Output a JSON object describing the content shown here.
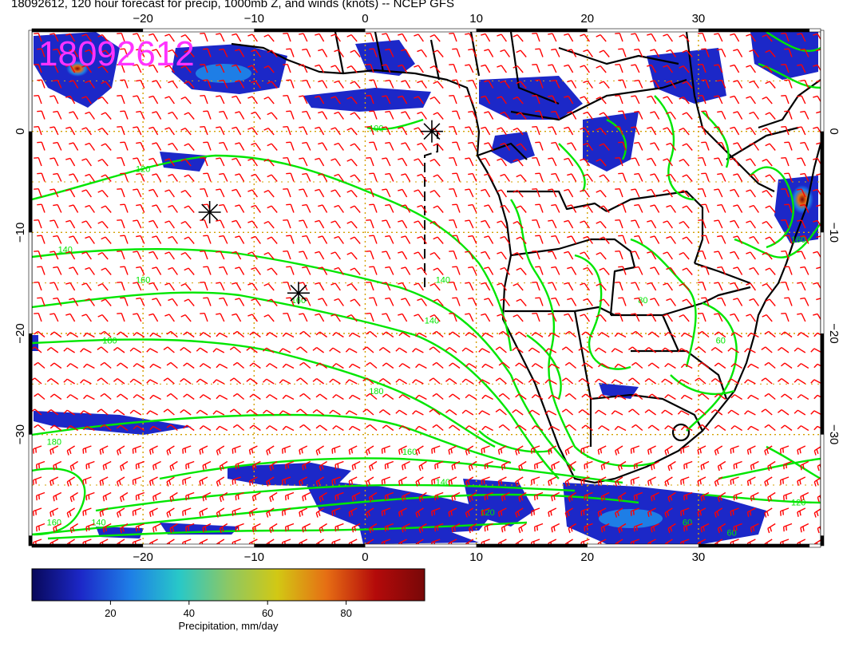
{
  "header": {
    "title": "18092612, 120 hour forecast for precip, 1000mb Z, and winds (knots) -- NCEP GFS",
    "stamp": "18092612",
    "stamp_color": "#ff33ff"
  },
  "map": {
    "lon_range": [
      -30,
      41
    ],
    "lat_range": [
      -41,
      10
    ],
    "lon_ticks": [
      {
        "value": -20,
        "label": "−20"
      },
      {
        "value": -10,
        "label": "−10"
      },
      {
        "value": 0,
        "label": "0"
      },
      {
        "value": 10,
        "label": "10"
      },
      {
        "value": 20,
        "label": "20"
      },
      {
        "value": 30,
        "label": "30"
      }
    ],
    "lat_ticks": [
      {
        "value": 0,
        "label": "0"
      },
      {
        "value": -10,
        "label": "−10"
      },
      {
        "value": -20,
        "label": "−20"
      },
      {
        "value": -30,
        "label": "−30"
      }
    ],
    "contour_labels": [
      {
        "text": "120",
        "lon": -20,
        "lat": -4
      },
      {
        "text": "140",
        "lon": -27,
        "lat": -12
      },
      {
        "text": "160",
        "lon": -20,
        "lat": -15
      },
      {
        "text": "160",
        "lon": -6,
        "lat": -17
      },
      {
        "text": "140",
        "lon": 7,
        "lat": -15
      },
      {
        "text": "140",
        "lon": 6,
        "lat": -19
      },
      {
        "text": "180",
        "lon": -23,
        "lat": -21
      },
      {
        "text": "180",
        "lon": 1,
        "lat": -26
      },
      {
        "text": "180",
        "lon": -28,
        "lat": -31
      },
      {
        "text": "160",
        "lon": 4,
        "lat": -32
      },
      {
        "text": "140",
        "lon": 7,
        "lat": -35
      },
      {
        "text": "120",
        "lon": 11,
        "lat": -38
      },
      {
        "text": "160",
        "lon": -28,
        "lat": -39
      },
      {
        "text": "140",
        "lon": -24,
        "lat": -39
      },
      {
        "text": "100",
        "lon": 1,
        "lat": 0
      },
      {
        "text": "120",
        "lon": 39,
        "lat": -37
      },
      {
        "text": "60",
        "lon": 29,
        "lat": -39
      },
      {
        "text": "60",
        "lon": 33,
        "lat": -40
      },
      {
        "text": "80",
        "lon": 25,
        "lat": -17
      },
      {
        "text": "60",
        "lon": 32,
        "lat": -21
      },
      {
        "text": "160",
        "lon": 39,
        "lat": -11
      }
    ],
    "markers": [
      {
        "lon": -14,
        "lat": -8
      },
      {
        "lon": -6,
        "lat": -16
      },
      {
        "lon": 6,
        "lat": 0
      }
    ],
    "colors": {
      "contour": "#00e600",
      "wind": "#ff0000",
      "coast": "#000000",
      "grid": "#d4a000"
    }
  },
  "colorbar": {
    "label": "Precipitation, mm/day",
    "range": [
      0,
      100
    ],
    "ticks": [
      {
        "value": 20,
        "label": "20"
      },
      {
        "value": 40,
        "label": "40"
      },
      {
        "value": 60,
        "label": "60"
      },
      {
        "value": 80,
        "label": "80"
      }
    ],
    "stops": [
      "#08085a",
      "#1c28c8",
      "#1e7ee6",
      "#28c8c8",
      "#8cc864",
      "#d2c814",
      "#e66e14",
      "#b40a0a",
      "#780808"
    ]
  }
}
